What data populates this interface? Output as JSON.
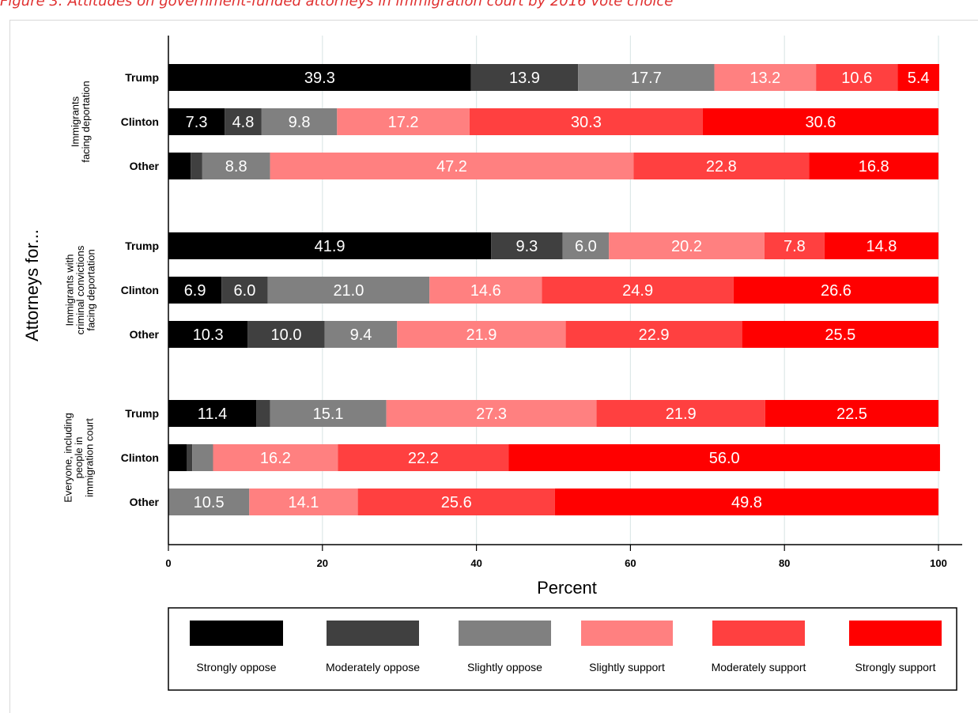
{
  "figure": {
    "title": "Figure 3: Attitudes on government-funded attorneys in immigration court by 2016 vote choice"
  },
  "chart_data": {
    "type": "bar",
    "orientation": "horizontal",
    "stacked": true,
    "xlabel": "Percent",
    "ylabel": "Attorneys for...",
    "xlim": [
      0,
      100
    ],
    "xticks": [
      0,
      20,
      40,
      60,
      80,
      100
    ],
    "grid": true,
    "legend_position": "bottom",
    "series": [
      {
        "name": "Strongly oppose",
        "color": "#000000"
      },
      {
        "name": "Moderately oppose",
        "color": "#404040"
      },
      {
        "name": "Slightly oppose",
        "color": "#808080"
      },
      {
        "name": "Slightly support",
        "color": "#ff8080"
      },
      {
        "name": "Moderately support",
        "color": "#ff4040"
      },
      {
        "name": "Strongly support",
        "color": "#ff0000"
      }
    ],
    "groups": [
      {
        "name": "Immigrants facing deportation",
        "name_lines": [
          "Immigrants",
          "facing deportation"
        ],
        "rows": [
          {
            "label": "Trump",
            "values": [
              39.3,
              13.9,
              17.7,
              13.2,
              10.6,
              5.4
            ],
            "shown": [
              "39.3",
              "13.9",
              "17.7",
              "13.2",
              "10.6",
              "5.4"
            ]
          },
          {
            "label": "Clinton",
            "values": [
              7.3,
              4.8,
              9.8,
              17.2,
              30.3,
              30.6
            ],
            "shown": [
              "7.3",
              "4.8",
              "9.8",
              "17.2",
              "30.3",
              "30.6"
            ]
          },
          {
            "label": "Other",
            "values": [
              2.9,
              1.5,
              8.8,
              47.2,
              22.8,
              16.8
            ],
            "shown": [
              "",
              "",
              "8.8",
              "47.2",
              "22.8",
              "16.8"
            ]
          }
        ]
      },
      {
        "name": "Immigrants with criminal convictions facing deportation",
        "name_lines": [
          "Immigrants with",
          "criminal convictions",
          "facing deportation"
        ],
        "rows": [
          {
            "label": "Trump",
            "values": [
              41.9,
              9.3,
              6.0,
              20.2,
              7.8,
              14.8
            ],
            "shown": [
              "41.9",
              "9.3",
              "6.0",
              "20.2",
              "7.8",
              "14.8"
            ]
          },
          {
            "label": "Clinton",
            "values": [
              6.9,
              6.0,
              21.0,
              14.6,
              24.9,
              26.6
            ],
            "shown": [
              "6.9",
              "6.0",
              "21.0",
              "14.6",
              "24.9",
              "26.6"
            ]
          },
          {
            "label": "Other",
            "values": [
              10.3,
              10.0,
              9.4,
              21.9,
              22.9,
              25.5
            ],
            "shown": [
              "10.3",
              "10.0",
              "9.4",
              "21.9",
              "22.9",
              "25.5"
            ]
          }
        ]
      },
      {
        "name": "Everyone, including people in immigration court",
        "name_lines": [
          "Everyone, including",
          "people in",
          "immigration court"
        ],
        "rows": [
          {
            "label": "Trump",
            "values": [
              11.4,
              1.8,
              15.1,
              27.3,
              21.9,
              22.5
            ],
            "shown": [
              "11.4",
              "",
              "15.1",
              "27.3",
              "21.9",
              "22.5"
            ]
          },
          {
            "label": "Clinton",
            "values": [
              2.4,
              0.7,
              2.7,
              16.2,
              22.2,
              56.0
            ],
            "shown": [
              "",
              "",
              "",
              "16.2",
              "22.2",
              "56.0"
            ]
          },
          {
            "label": "Other",
            "values": [
              0,
              0,
              10.5,
              14.1,
              25.6,
              49.8
            ],
            "shown": [
              "",
              "",
              "10.5",
              "14.1",
              "25.6",
              "49.8"
            ]
          }
        ]
      }
    ]
  }
}
